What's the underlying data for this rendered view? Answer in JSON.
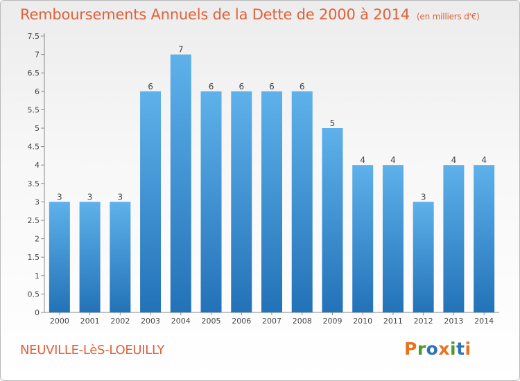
{
  "header": {
    "title": "Remboursements Annuels de la Dette de 2000 à 2014",
    "subtitle": "(en milliers d'€)"
  },
  "footer": {
    "location": "NEUVILLE-LèS-LOEUILLY",
    "logo": "Proxiti"
  },
  "colors": {
    "title": "#e0613a",
    "bar_top": "#5eb1ea",
    "bar_bottom": "#2372b8",
    "logo_letters": [
      "#e8731d",
      "#4a9a2d",
      "#2c73b8",
      "#e8731d",
      "#4a9a2d",
      "#2c73b8",
      "#e8731d"
    ]
  },
  "chart_data": {
    "type": "bar",
    "title": "Remboursements Annuels de la Dette de 2000 à 2014",
    "subtitle": "(en milliers d'€)",
    "categories": [
      "2000",
      "2001",
      "2002",
      "2003",
      "2004",
      "2005",
      "2006",
      "2007",
      "2008",
      "2009",
      "2010",
      "2011",
      "2012",
      "2013",
      "2014"
    ],
    "values": [
      3,
      3,
      3,
      6,
      7,
      6,
      6,
      6,
      6,
      5,
      4,
      4,
      3,
      4,
      4
    ],
    "data_labels": [
      "3",
      "3",
      "3",
      "6",
      "7",
      "6",
      "6",
      "6",
      "6",
      "5",
      "4",
      "4",
      "3",
      "4",
      "4"
    ],
    "ylim": [
      0,
      7.5
    ],
    "yticks": [
      0,
      0.5,
      1,
      1.5,
      2,
      2.5,
      3,
      3.5,
      4,
      4.5,
      5,
      5.5,
      6,
      6.5,
      7,
      7.5
    ],
    "ytick_labels": [
      "0",
      "0.5",
      "1",
      "1.5",
      "2",
      "2.5",
      "3",
      "3.5",
      "4",
      "4.5",
      "5",
      "5.5",
      "6",
      "6.5",
      "7",
      "7.5"
    ],
    "xlabel": "",
    "ylabel": "",
    "grid": false,
    "legend": "none"
  }
}
